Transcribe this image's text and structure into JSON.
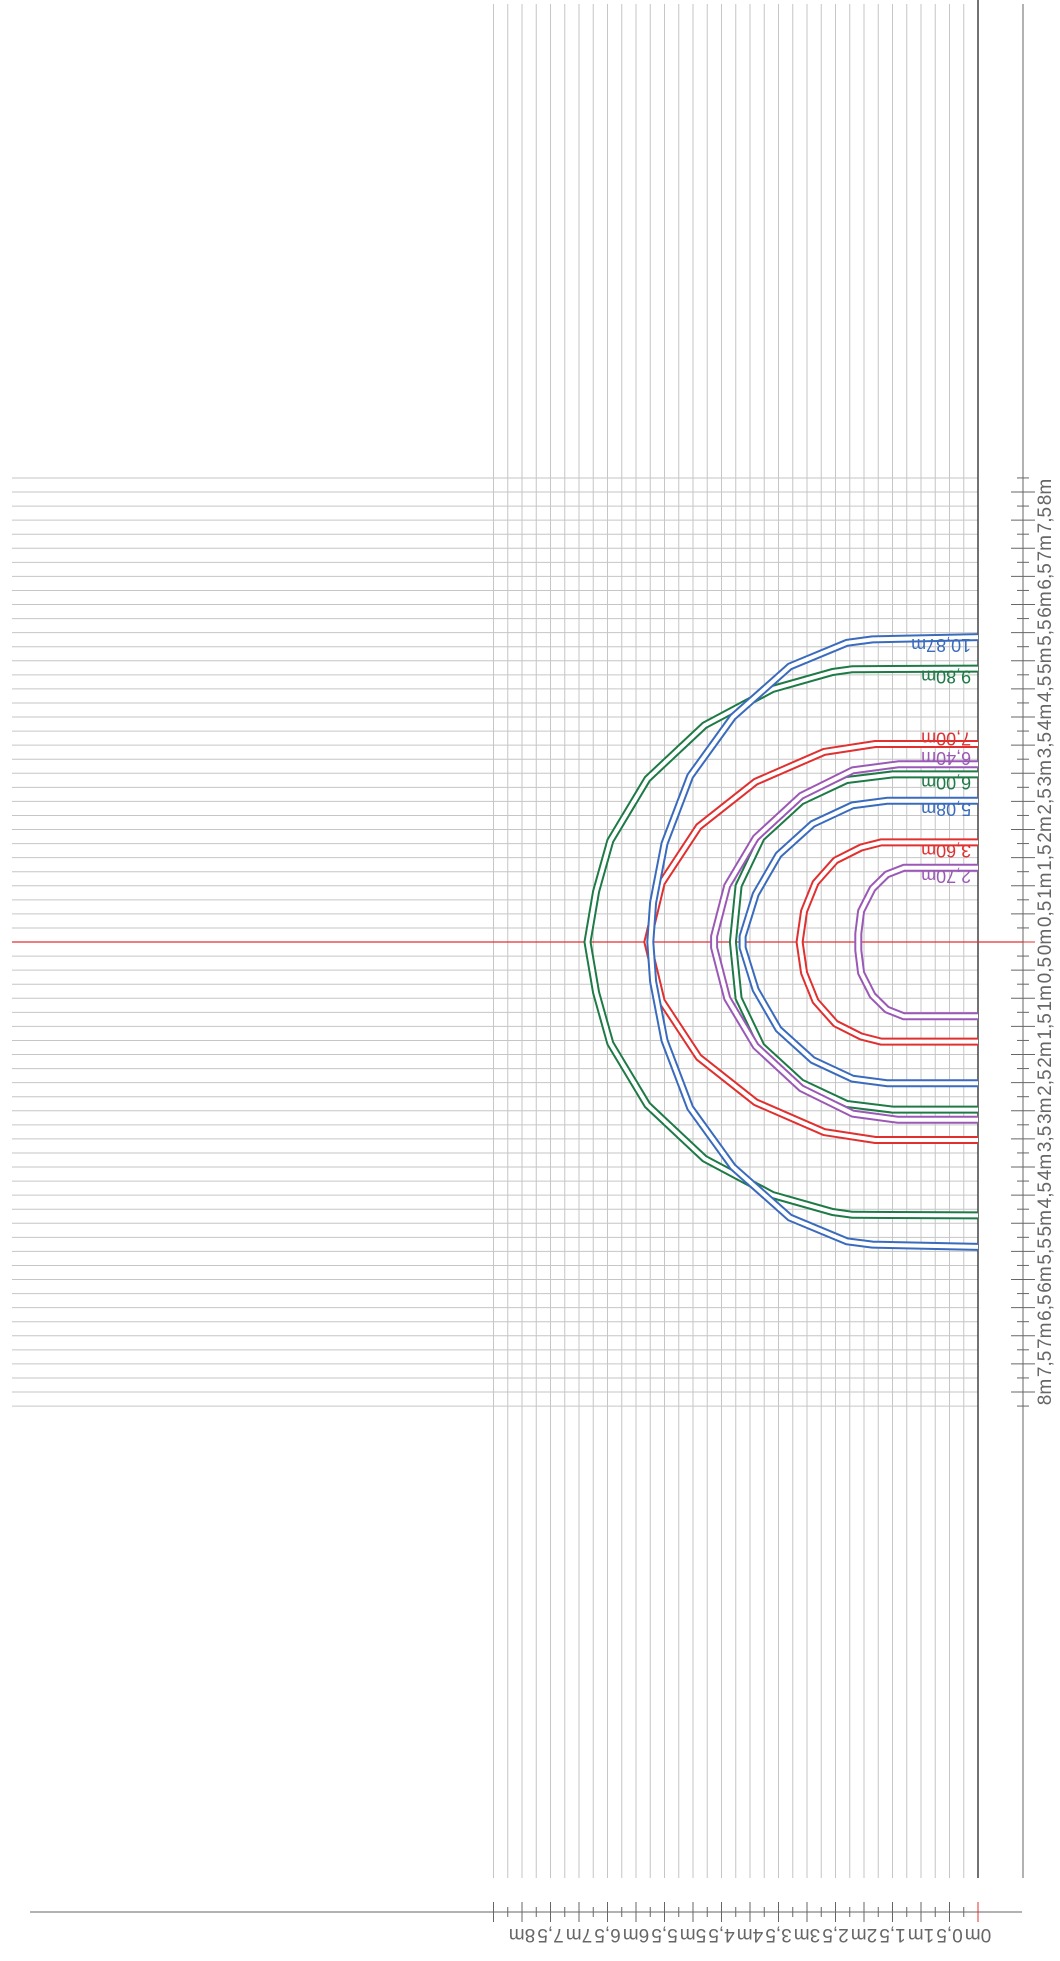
{
  "chart_data": {
    "type": "line",
    "description_units": "metres",
    "x_range": [
      0,
      8
    ],
    "y_range": [
      -8,
      8
    ],
    "grid": true,
    "x_ticks": [
      {
        "value": 0,
        "label": "0m"
      },
      {
        "value": 0.5,
        "label": "0,5"
      },
      {
        "value": 1,
        "label": "1m"
      },
      {
        "value": 1.5,
        "label": "1,5"
      },
      {
        "value": 2,
        "label": "2m"
      },
      {
        "value": 2.5,
        "label": "2,5"
      },
      {
        "value": 3,
        "label": "3m"
      },
      {
        "value": 3.5,
        "label": "3,5"
      },
      {
        "value": 4,
        "label": "4m"
      },
      {
        "value": 4.5,
        "label": "4,5"
      },
      {
        "value": 5,
        "label": "5m"
      },
      {
        "value": 5.5,
        "label": "5,5"
      },
      {
        "value": 6,
        "label": "6m"
      },
      {
        "value": 6.5,
        "label": "6,5"
      },
      {
        "value": 7,
        "label": "7m"
      },
      {
        "value": 7.5,
        "label": "7,5"
      },
      {
        "value": 8,
        "label": "8m"
      }
    ],
    "y_ticks": [
      {
        "value": 8,
        "label": "8m"
      },
      {
        "value": 7.5,
        "label": "7,5"
      },
      {
        "value": 7,
        "label": "7m"
      },
      {
        "value": 6.5,
        "label": "6,5"
      },
      {
        "value": 6,
        "label": "6m"
      },
      {
        "value": 5.5,
        "label": "5,5"
      },
      {
        "value": 5,
        "label": "5m"
      },
      {
        "value": 4.5,
        "label": "4,5"
      },
      {
        "value": 4,
        "label": "4m"
      },
      {
        "value": 3.5,
        "label": "3,5"
      },
      {
        "value": 3,
        "label": "3m"
      },
      {
        "value": 2.5,
        "label": "2,5"
      },
      {
        "value": 2,
        "label": "2m"
      },
      {
        "value": 1.5,
        "label": "1,5"
      },
      {
        "value": 1,
        "label": "1m"
      },
      {
        "value": 0.5,
        "label": "0,5"
      },
      {
        "value": 0,
        "label": "0m"
      },
      {
        "value": -0.5,
        "label": "0,5"
      },
      {
        "value": -1,
        "label": "1m"
      },
      {
        "value": -1.5,
        "label": "1,5"
      },
      {
        "value": -2,
        "label": "2m"
      },
      {
        "value": -2.5,
        "label": "2,5"
      },
      {
        "value": -3,
        "label": "3m"
      },
      {
        "value": -3.5,
        "label": "3,5"
      },
      {
        "value": -4,
        "label": "4m"
      },
      {
        "value": -4.5,
        "label": "4,5"
      },
      {
        "value": -5,
        "label": "5m"
      },
      {
        "value": -5.5,
        "label": "5,5"
      },
      {
        "value": -6,
        "label": "6m"
      },
      {
        "value": -6.5,
        "label": "6,5"
      },
      {
        "value": -7,
        "label": "7m"
      },
      {
        "value": -7.5,
        "label": "7,5"
      },
      {
        "value": -8,
        "label": "8m"
      }
    ],
    "series": [
      {
        "name": "2,70m",
        "color": "#9b59b6",
        "points": [
          [
            0,
            1.32
          ],
          [
            1.3,
            1.32
          ],
          [
            1.6,
            1.2
          ],
          [
            1.85,
            0.95
          ],
          [
            2.05,
            0.55
          ],
          [
            2.1,
            0.15
          ],
          [
            2.1,
            -0.15
          ],
          [
            2.05,
            -0.55
          ],
          [
            1.85,
            -0.95
          ],
          [
            1.6,
            -1.2
          ],
          [
            1.3,
            -1.32
          ],
          [
            0,
            -1.32
          ]
        ]
      },
      {
        "name": "3,60m",
        "color": "#e03030",
        "points": [
          [
            0,
            1.77
          ],
          [
            1.7,
            1.77
          ],
          [
            2.05,
            1.68
          ],
          [
            2.5,
            1.45
          ],
          [
            2.85,
            1.05
          ],
          [
            3.05,
            0.55
          ],
          [
            3.13,
            0
          ],
          [
            3.05,
            -0.55
          ],
          [
            2.85,
            -1.05
          ],
          [
            2.5,
            -1.45
          ],
          [
            2.05,
            -1.68
          ],
          [
            1.7,
            -1.77
          ],
          [
            0,
            -1.77
          ]
        ]
      },
      {
        "name": "5,08m",
        "color": "#3a6bbd",
        "points": [
          [
            0,
            2.51
          ],
          [
            1.6,
            2.51
          ],
          [
            2.2,
            2.43
          ],
          [
            2.9,
            2.1
          ],
          [
            3.5,
            1.55
          ],
          [
            3.9,
            0.85
          ],
          [
            4.13,
            0.1
          ],
          [
            4.13,
            -0.1
          ],
          [
            3.9,
            -0.85
          ],
          [
            3.5,
            -1.55
          ],
          [
            2.9,
            -2.1
          ],
          [
            2.2,
            -2.43
          ],
          [
            1.6,
            -2.51
          ],
          [
            0,
            -2.51
          ]
        ]
      },
      {
        "name": "6,00m",
        "color": "#1e7a46",
        "points": [
          [
            0,
            2.98
          ],
          [
            1.5,
            2.98
          ],
          [
            2.3,
            2.88
          ],
          [
            3.1,
            2.5
          ],
          [
            3.8,
            1.85
          ],
          [
            4.2,
            1.0
          ],
          [
            4.3,
            0
          ],
          [
            4.2,
            -1.0
          ],
          [
            3.8,
            -1.85
          ],
          [
            3.1,
            -2.5
          ],
          [
            2.3,
            -2.88
          ],
          [
            1.5,
            -2.98
          ],
          [
            0,
            -2.98
          ]
        ]
      },
      {
        "name": "6,40m",
        "color": "#9b59b6",
        "points": [
          [
            0,
            3.16
          ],
          [
            1.4,
            3.16
          ],
          [
            2.2,
            3.05
          ],
          [
            3.1,
            2.6
          ],
          [
            3.9,
            1.85
          ],
          [
            4.4,
            1.0
          ],
          [
            4.63,
            0.1
          ],
          [
            4.63,
            -0.1
          ],
          [
            4.4,
            -1.0
          ],
          [
            3.9,
            -1.85
          ],
          [
            3.1,
            -2.6
          ],
          [
            2.2,
            -3.05
          ],
          [
            1.4,
            -3.16
          ],
          [
            0,
            -3.16
          ]
        ]
      },
      {
        "name": "7,00m",
        "color": "#e03030",
        "points": [
          [
            0,
            3.52
          ],
          [
            1.8,
            3.52
          ],
          [
            2.7,
            3.38
          ],
          [
            3.9,
            2.85
          ],
          [
            4.9,
            2.05
          ],
          [
            5.55,
            1.05
          ],
          [
            5.8,
            0
          ],
          [
            5.55,
            -1.05
          ],
          [
            4.9,
            -2.05
          ],
          [
            3.9,
            -2.85
          ],
          [
            2.7,
            -3.38
          ],
          [
            1.8,
            -3.52
          ],
          [
            0,
            -3.52
          ]
        ]
      },
      {
        "name": "9,80m",
        "color": "#1e7a46",
        "points": [
          [
            0,
            4.86
          ],
          [
            2.2,
            4.85
          ],
          [
            2.55,
            4.8
          ],
          [
            3.6,
            4.5
          ],
          [
            4.8,
            3.85
          ],
          [
            5.8,
            2.9
          ],
          [
            6.45,
            1.8
          ],
          [
            6.7,
            0.9
          ],
          [
            6.85,
            0
          ],
          [
            6.7,
            -0.9
          ],
          [
            6.45,
            -1.8
          ],
          [
            5.8,
            -2.9
          ],
          [
            4.8,
            -3.85
          ],
          [
            3.6,
            -4.5
          ],
          [
            2.55,
            -4.8
          ],
          [
            2.2,
            -4.85
          ],
          [
            0,
            -4.86
          ]
        ]
      },
      {
        "name": "10,87m",
        "color": "#3a6bbd",
        "points": [
          [
            0,
            5.42
          ],
          [
            1.85,
            5.38
          ],
          [
            2.3,
            5.32
          ],
          [
            3.3,
            4.9
          ],
          [
            4.3,
            4.0
          ],
          [
            5.05,
            2.95
          ],
          [
            5.5,
            1.75
          ],
          [
            5.7,
            0.7
          ],
          [
            5.75,
            0
          ],
          [
            5.7,
            -0.7
          ],
          [
            5.5,
            -1.75
          ],
          [
            5.05,
            -2.95
          ],
          [
            4.3,
            -4.0
          ],
          [
            3.3,
            -4.9
          ],
          [
            2.3,
            -5.32
          ],
          [
            1.85,
            -5.38
          ],
          [
            0,
            -5.42
          ]
        ]
      }
    ],
    "labels": [
      {
        "text": "2,70m",
        "color": "#9b59b6",
        "x": 0.05,
        "y": 1.2
      },
      {
        "text": "3,60m",
        "color": "#e03030",
        "x": 0.05,
        "y": 1.65
      },
      {
        "text": "5,08m",
        "color": "#3a6bbd",
        "x": 0.05,
        "y": 2.39
      },
      {
        "text": "6,00m",
        "color": "#1e7a46",
        "x": 0.05,
        "y": 2.86
      },
      {
        "text": "6,40m",
        "color": "#9b59b6",
        "x": 0.05,
        "y": 3.29
      },
      {
        "text": "7,00m",
        "color": "#e03030",
        "x": 0.05,
        "y": 3.64
      },
      {
        "text": "9,80m",
        "color": "#1e7a46",
        "x": 0.05,
        "y": 4.74
      },
      {
        "text": "10,87m",
        "color": "#3a6bbd",
        "x": 0.05,
        "y": 5.3
      }
    ]
  }
}
